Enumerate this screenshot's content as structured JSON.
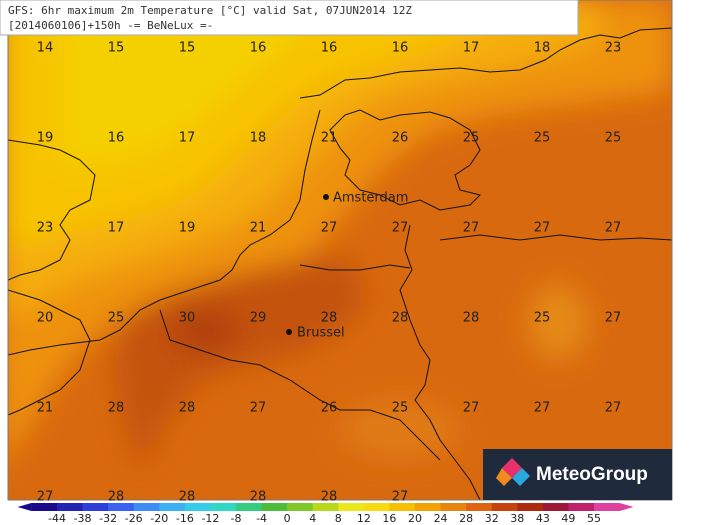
{
  "header": {
    "line1": "GFS: 6hr maximum 2m Temperature [°C] valid Sat, 07JUN2014 12Z",
    "line2": "[2014060106]+150h -= BeNeLux =-"
  },
  "grid": {
    "rows": [
      [
        14,
        15,
        15,
        16,
        16,
        16,
        17,
        18,
        23
      ],
      [
        19,
        16,
        17,
        18,
        21,
        26,
        25,
        25,
        25
      ],
      [
        23,
        17,
        19,
        21,
        27,
        27,
        27,
        27,
        27
      ],
      [
        20,
        25,
        30,
        29,
        28,
        28,
        28,
        25,
        27
      ],
      [
        21,
        28,
        28,
        27,
        26,
        25,
        27,
        27,
        27
      ],
      [
        27,
        28,
        28,
        28,
        28,
        27
      ]
    ]
  },
  "cities": [
    {
      "name": "Amsterdam"
    },
    {
      "name": "Brussel"
    }
  ],
  "legend": {
    "labels": [
      -44,
      -38,
      -32,
      -26,
      -20,
      -16,
      -12,
      -8,
      -4,
      0,
      4,
      8,
      12,
      16,
      20,
      24,
      28,
      32,
      38,
      43,
      49,
      55
    ]
  },
  "logo": {
    "text": "MeteoGroup"
  }
}
